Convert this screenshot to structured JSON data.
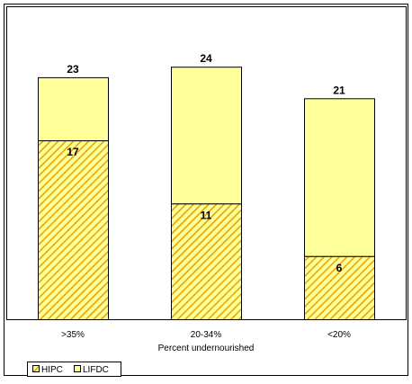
{
  "chart_data": {
    "type": "bar",
    "stacked": true,
    "categories": [
      ">35%",
      "20-34%",
      "<20%"
    ],
    "series": [
      {
        "name": "HIPC",
        "values": [
          17,
          11,
          6
        ],
        "color": "#FFFF99",
        "hatch_color": "#E8A000",
        "pattern": "diagonal-hatch"
      },
      {
        "name": "LIFDC",
        "values": [
          6,
          13,
          15
        ],
        "color": "#FFFF99",
        "pattern": "solid"
      }
    ],
    "totals": [
      23,
      24,
      21
    ],
    "xlabel": "Percent undernourished",
    "ylabel": "",
    "ylim": [
      0,
      26
    ],
    "grid": false,
    "legend_position": "bottom-left"
  }
}
